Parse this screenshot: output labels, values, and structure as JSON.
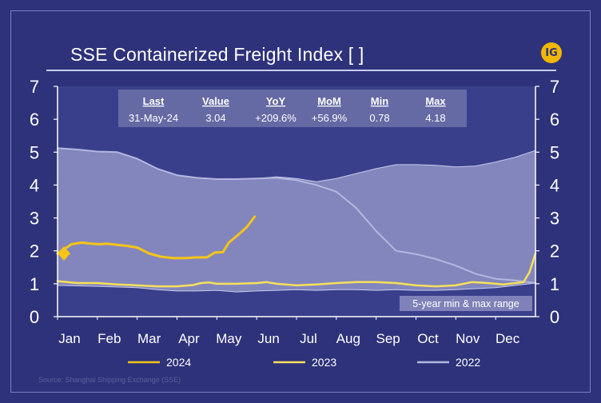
{
  "header": {
    "title": "SSE Containerized Freight Index [ ]",
    "logo_text": "IG"
  },
  "stats": {
    "headers": [
      "Last",
      "Value",
      "YoY",
      "MoM",
      "Min",
      "Max"
    ],
    "values": [
      "31-May-24",
      "3.04",
      "+209.6%",
      "+56.9%",
      "0.78",
      "4.18"
    ]
  },
  "range_label": "5-year min & max range",
  "source": "Source: Shanghai Shipping Exchange (SSE)",
  "colors": {
    "background": "#2e327a",
    "plot_area": "#3a3f8c",
    "range_fill": "#9c9fcc",
    "series_2024": "#f5c518",
    "series_2023": "#f7e05a",
    "series_2022": "#b4b7e0",
    "axis": "#ffffff"
  },
  "chart_data": {
    "type": "line",
    "ylim": [
      0,
      7
    ],
    "xlim": [
      0,
      12
    ],
    "y_ticks": [
      "0",
      "1",
      "2",
      "3",
      "4",
      "5",
      "6",
      "7"
    ],
    "month_labels": [
      "Jan",
      "Feb",
      "Mar",
      "Apr",
      "May",
      "Jun",
      "Jul",
      "Aug",
      "Sep",
      "Oct",
      "Nov",
      "Dec"
    ],
    "legend": [
      "2024",
      "2023",
      "2022"
    ],
    "range_upper": [
      [
        0,
        5.12
      ],
      [
        0.5,
        5.08
      ],
      [
        1,
        5.02
      ],
      [
        1.5,
        5.0
      ],
      [
        2,
        4.8
      ],
      [
        2.5,
        4.5
      ],
      [
        3,
        4.3
      ],
      [
        3.5,
        4.22
      ],
      [
        4,
        4.18
      ],
      [
        4.5,
        4.18
      ],
      [
        5,
        4.2
      ],
      [
        5.5,
        4.25
      ],
      [
        6,
        4.2
      ],
      [
        6.5,
        4.1
      ],
      [
        7,
        4.2
      ],
      [
        7.5,
        4.35
      ],
      [
        8,
        4.5
      ],
      [
        8.5,
        4.62
      ],
      [
        9,
        4.62
      ],
      [
        9.5,
        4.6
      ],
      [
        10,
        4.55
      ],
      [
        10.5,
        4.58
      ],
      [
        11,
        4.7
      ],
      [
        11.5,
        4.85
      ],
      [
        12,
        5.05
      ]
    ],
    "range_lower": [
      [
        0,
        0.95
      ],
      [
        1,
        0.92
      ],
      [
        2,
        0.88
      ],
      [
        2.5,
        0.82
      ],
      [
        3,
        0.78
      ],
      [
        3.5,
        0.78
      ],
      [
        4,
        0.8
      ],
      [
        4.5,
        0.75
      ],
      [
        5,
        0.78
      ],
      [
        5.5,
        0.8
      ],
      [
        6,
        0.82
      ],
      [
        6.5,
        0.8
      ],
      [
        7,
        0.82
      ],
      [
        7.5,
        0.82
      ],
      [
        8,
        0.8
      ],
      [
        8.5,
        0.82
      ],
      [
        9,
        0.8
      ],
      [
        9.5,
        0.8
      ],
      [
        10,
        0.82
      ],
      [
        10.5,
        0.85
      ],
      [
        11,
        0.88
      ],
      [
        11.5,
        0.95
      ],
      [
        12,
        1.02
      ]
    ],
    "series": [
      {
        "name": "2024",
        "points": [
          [
            0,
            1.92
          ],
          [
            0.35,
            2.2
          ],
          [
            0.6,
            2.25
          ],
          [
            0.85,
            2.22
          ],
          [
            1.05,
            2.2
          ],
          [
            1.25,
            2.22
          ],
          [
            1.5,
            2.18
          ],
          [
            1.75,
            2.15
          ],
          [
            2,
            2.1
          ],
          [
            2.3,
            1.92
          ],
          [
            2.6,
            1.82
          ],
          [
            2.9,
            1.78
          ],
          [
            3.2,
            1.78
          ],
          [
            3.5,
            1.8
          ],
          [
            3.75,
            1.8
          ],
          [
            3.95,
            1.95
          ],
          [
            4.15,
            1.96
          ],
          [
            4.3,
            2.25
          ],
          [
            4.55,
            2.5
          ],
          [
            4.75,
            2.72
          ],
          [
            4.95,
            3.04
          ]
        ]
      },
      {
        "name": "2023",
        "points": [
          [
            0,
            1.08
          ],
          [
            0.5,
            1.02
          ],
          [
            1,
            1.02
          ],
          [
            1.5,
            0.98
          ],
          [
            2,
            0.95
          ],
          [
            2.5,
            0.92
          ],
          [
            3,
            0.92
          ],
          [
            3.4,
            0.96
          ],
          [
            3.6,
            1.02
          ],
          [
            3.8,
            1.04
          ],
          [
            4,
            1.0
          ],
          [
            4.5,
            1.0
          ],
          [
            5,
            1.02
          ],
          [
            5.25,
            1.05
          ],
          [
            5.5,
            1.0
          ],
          [
            6,
            0.95
          ],
          [
            6.5,
            0.98
          ],
          [
            7,
            1.02
          ],
          [
            7.5,
            1.05
          ],
          [
            8,
            1.05
          ],
          [
            8.5,
            1.02
          ],
          [
            9,
            0.95
          ],
          [
            9.5,
            0.92
          ],
          [
            10,
            0.95
          ],
          [
            10.4,
            1.05
          ],
          [
            10.8,
            1.02
          ],
          [
            11.2,
            0.98
          ],
          [
            11.5,
            1.02
          ],
          [
            11.7,
            1.05
          ],
          [
            11.85,
            1.35
          ],
          [
            12,
            1.92
          ]
        ]
      },
      {
        "name": "2022",
        "points": [
          [
            0,
            5.12
          ],
          [
            0.5,
            5.08
          ],
          [
            1,
            5.02
          ],
          [
            1.5,
            5.0
          ],
          [
            2,
            4.8
          ],
          [
            2.5,
            4.5
          ],
          [
            3,
            4.3
          ],
          [
            3.5,
            4.22
          ],
          [
            4,
            4.18
          ],
          [
            4.5,
            4.18
          ],
          [
            5,
            4.2
          ],
          [
            5.5,
            4.22
          ],
          [
            6,
            4.15
          ],
          [
            6.5,
            4.0
          ],
          [
            7,
            3.8
          ],
          [
            7.5,
            3.3
          ],
          [
            8,
            2.6
          ],
          [
            8.5,
            2.0
          ],
          [
            9,
            1.9
          ],
          [
            9.5,
            1.75
          ],
          [
            10,
            1.55
          ],
          [
            10.5,
            1.3
          ],
          [
            11,
            1.15
          ],
          [
            11.5,
            1.1
          ],
          [
            12,
            1.02
          ]
        ]
      }
    ]
  }
}
